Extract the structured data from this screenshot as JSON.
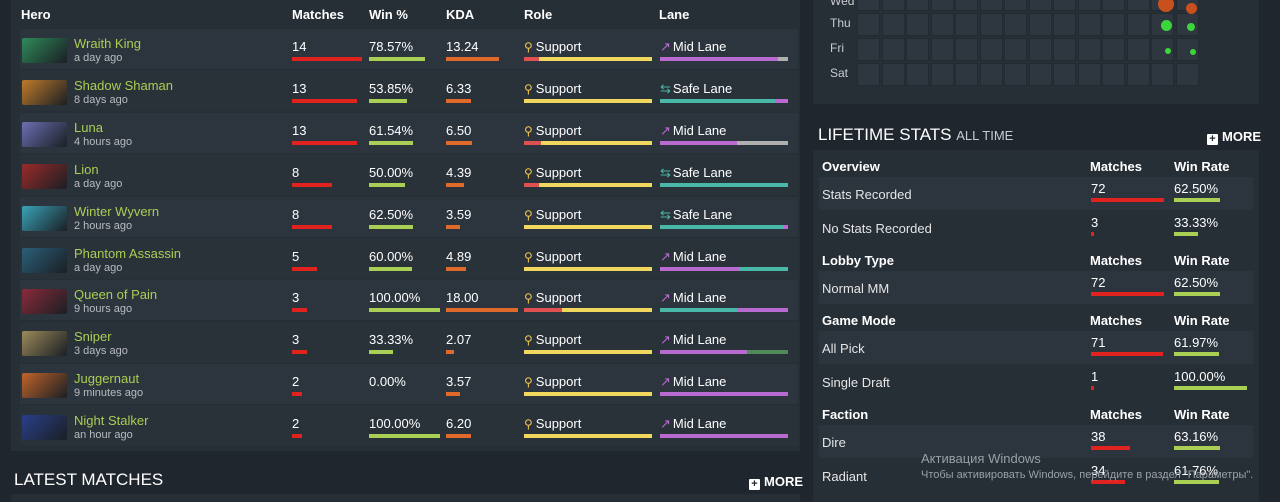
{
  "hero_table": {
    "headers": {
      "hero": "Hero",
      "matches": "Matches",
      "winrate": "Win %",
      "kda": "KDA",
      "role": "Role",
      "lane": "Lane"
    },
    "rows": [
      {
        "name": "Wraith King",
        "time": "a day ago",
        "matches": "14",
        "winrate": "78.57%",
        "kda": "13.24",
        "role": "Support",
        "lane": "Mid Lane",
        "matches_n": 14,
        "winrate_n": 78.57,
        "kda_n": 13.24,
        "portrait_color": "#2f8a5a"
      },
      {
        "name": "Shadow Shaman",
        "time": "8 days ago",
        "matches": "13",
        "winrate": "53.85%",
        "kda": "6.33",
        "role": "Support",
        "lane": "Safe Lane",
        "matches_n": 13,
        "winrate_n": 53.85,
        "kda_n": 6.33,
        "portrait_color": "#c07a2a"
      },
      {
        "name": "Luna",
        "time": "4 hours ago",
        "matches": "13",
        "winrate": "61.54%",
        "kda": "6.50",
        "role": "Support",
        "lane": "Mid Lane",
        "matches_n": 13,
        "winrate_n": 61.54,
        "kda_n": 6.5,
        "portrait_color": "#6b6fb3"
      },
      {
        "name": "Lion",
        "time": "a day ago",
        "matches": "8",
        "winrate": "50.00%",
        "kda": "4.39",
        "role": "Support",
        "lane": "Safe Lane",
        "matches_n": 8,
        "winrate_n": 50.0,
        "kda_n": 4.39,
        "portrait_color": "#9b2a2a"
      },
      {
        "name": "Winter Wyvern",
        "time": "2 hours ago",
        "matches": "8",
        "winrate": "62.50%",
        "kda": "3.59",
        "role": "Support",
        "lane": "Safe Lane",
        "matches_n": 8,
        "winrate_n": 62.5,
        "kda_n": 3.59,
        "portrait_color": "#3aa3b8"
      },
      {
        "name": "Phantom Assassin",
        "time": "a day ago",
        "matches": "5",
        "winrate": "60.00%",
        "kda": "4.89",
        "role": "Support",
        "lane": "Mid Lane",
        "matches_n": 5,
        "winrate_n": 60.0,
        "kda_n": 4.89,
        "portrait_color": "#2b5f7a"
      },
      {
        "name": "Queen of Pain",
        "time": "9 hours ago",
        "matches": "3",
        "winrate": "100.00%",
        "kda": "18.00",
        "role": "Support",
        "lane": "Mid Lane",
        "matches_n": 3,
        "winrate_n": 100.0,
        "kda_n": 18.0,
        "portrait_color": "#8a2a3a"
      },
      {
        "name": "Sniper",
        "time": "3 days ago",
        "matches": "3",
        "winrate": "33.33%",
        "kda": "2.07",
        "role": "Support",
        "lane": "Mid Lane",
        "matches_n": 3,
        "winrate_n": 33.33,
        "kda_n": 2.07,
        "portrait_color": "#9c8a5a"
      },
      {
        "name": "Juggernaut",
        "time": "9 minutes ago",
        "matches": "2",
        "winrate": "0.00%",
        "kda": "3.57",
        "role": "Support",
        "lane": "Mid Lane",
        "matches_n": 2,
        "winrate_n": 0.0,
        "kda_n": 3.57,
        "portrait_color": "#c0642a"
      },
      {
        "name": "Night Stalker",
        "time": "an hour ago",
        "matches": "2",
        "winrate": "100.00%",
        "kda": "6.20",
        "role": "Support",
        "lane": "Mid Lane",
        "matches_n": 2,
        "winrate_n": 100.0,
        "kda_n": 6.2,
        "portrait_color": "#2a3f8a"
      }
    ]
  },
  "latest_matches": {
    "title": "LATEST MATCHES",
    "more": "MORE"
  },
  "heatmap": {
    "days": [
      "Wed",
      "Thu",
      "Fri",
      "Sat"
    ]
  },
  "lifetime": {
    "title": "LIFETIME STATS",
    "subtitle": "ALL TIME",
    "more": "MORE",
    "sections": [
      {
        "header": "Overview",
        "col1": "Matches",
        "col2": "Win Rate",
        "rows": [
          {
            "label": "Stats Recorded",
            "matches": "72",
            "winrate": "62.50%",
            "matches_n": 72,
            "winrate_n": 62.5
          },
          {
            "label": "No Stats Recorded",
            "matches": "3",
            "winrate": "33.33%",
            "matches_n": 3,
            "winrate_n": 33.33
          }
        ]
      },
      {
        "header": "Lobby Type",
        "col1": "Matches",
        "col2": "Win Rate",
        "rows": [
          {
            "label": "Normal MM",
            "matches": "72",
            "winrate": "62.50%",
            "matches_n": 72,
            "winrate_n": 62.5
          }
        ]
      },
      {
        "header": "Game Mode",
        "col1": "Matches",
        "col2": "Win Rate",
        "rows": [
          {
            "label": "All Pick",
            "matches": "71",
            "winrate": "61.97%",
            "matches_n": 71,
            "winrate_n": 61.97
          },
          {
            "label": "Single Draft",
            "matches": "1",
            "winrate": "100.00%",
            "matches_n": 1,
            "winrate_n": 100.0
          }
        ]
      },
      {
        "header": "Faction",
        "col1": "Matches",
        "col2": "Win Rate",
        "rows": [
          {
            "label": "Dire",
            "matches": "38",
            "winrate": "63.16%",
            "matches_n": 38,
            "winrate_n": 63.16
          },
          {
            "label": "Radiant",
            "matches": "34",
            "winrate": "61.76%",
            "matches_n": 34,
            "winrate_n": 61.76
          }
        ]
      }
    ]
  },
  "watermark": {
    "line1": "Активация Windows",
    "line2": "Чтобы активировать Windows, перейдите в раздел \"Параметры\"."
  },
  "colors": {
    "accent_green": "#a9cf54",
    "bar_red": "#e0231f",
    "bar_orange": "#e06a2a",
    "role_yellow": "#f2d75e",
    "lane_purple": "#b96ad1",
    "lane_teal": "#4ab8a8"
  }
}
